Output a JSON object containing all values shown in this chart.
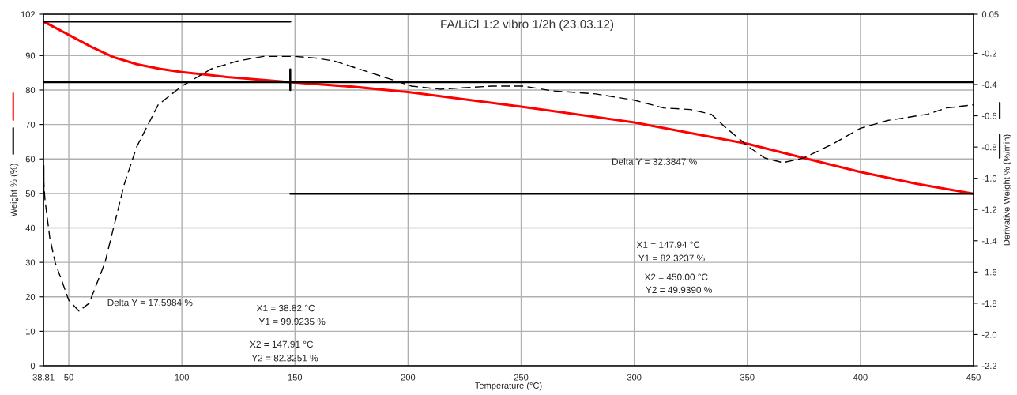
{
  "chart_data": {
    "type": "line",
    "title": "FA/LiCl 1:2 vibro 1/2h (23.03.12)",
    "xlabel": "Temperature (°C)",
    "ylabel": "Weight % (%)",
    "y2label": "Derivative Weight % (%/min)",
    "xlim": [
      38.81,
      450
    ],
    "xticks": [
      38.81,
      50,
      100,
      150,
      200,
      250,
      300,
      350,
      400,
      450
    ],
    "ylim": [
      0,
      102
    ],
    "yticks": [
      0,
      10,
      20,
      30,
      40,
      50,
      60,
      70,
      80,
      90,
      102
    ],
    "y2lim": [
      -2.2,
      0.05
    ],
    "y2ticks": [
      0.05,
      -0.2,
      -0.4,
      -0.6,
      -0.8,
      {
        "value": -1.0,
        "label": "-1.0"
      },
      -1.2,
      -1.4,
      -1.6,
      -1.8,
      {
        "value": -2.0,
        "label": "-2.0"
      },
      -2.2
    ],
    "grid": true,
    "marker": "none",
    "series": [
      {
        "color": "#ff0000",
        "line_style": "solid",
        "x": [
          38.81,
          50,
          60,
          70,
          80,
          90,
          100,
          120,
          147.91,
          175,
          200,
          250,
          300,
          350,
          375,
          400,
          425,
          450
        ],
        "values": [
          99.9,
          96,
          92.5,
          89.5,
          87.5,
          86.2,
          85.2,
          83.8,
          82.3,
          81,
          79.4,
          75.2,
          70.6,
          64.4,
          60.3,
          56.2,
          52.8,
          49.9
        ]
      },
      {
        "color": "#000000",
        "line_style": "dashed",
        "axis": "y2",
        "x": [
          38.81,
          39.5,
          41.6,
          44,
          50,
          54.5,
          59,
          66,
          74.5,
          80,
          89.5,
          100,
          113,
          124.5,
          136,
          150,
          159,
          167.6,
          191,
          201.5,
          214,
          237,
          251,
          263.5,
          283,
          300,
          313,
          324.8,
          334,
          340,
          350.7,
          357.7,
          365.7,
          375,
          387.8,
          400,
          412,
          429.7,
          438,
          450
        ],
        "values": [
          -1.0,
          -1.14,
          -1.38,
          -1.54,
          -1.78,
          -1.85,
          -1.8,
          -1.54,
          -1.04,
          -0.8,
          -0.53,
          -0.41,
          -0.3,
          -0.25,
          -0.22,
          -0.22,
          -0.23,
          -0.25,
          -0.36,
          -0.41,
          -0.43,
          -0.41,
          -0.41,
          -0.44,
          -0.46,
          -0.5,
          -0.55,
          -0.56,
          -0.59,
          -0.67,
          -0.8,
          -0.87,
          -0.9,
          -0.87,
          -0.78,
          -0.68,
          -0.63,
          -0.59,
          -0.55,
          -0.53
        ]
      },
      {
        "color": "#000000",
        "line_style": "solid",
        "x": [
          38.81,
          147.91
        ],
        "values": [
          99.9,
          99.9
        ]
      },
      {
        "color": "#000000",
        "line_style": "solid",
        "x": [
          38.81,
          450
        ],
        "values": [
          82.3,
          82.3
        ]
      },
      {
        "color": "#000000",
        "line_style": "solid",
        "x": [
          147.94,
          450
        ],
        "values": [
          49.9,
          49.9
        ]
      },
      {
        "color": "#000000",
        "line_style": "solid",
        "x": [
          38.81,
          38.81
        ],
        "values": [
          50,
          58
        ]
      },
      {
        "color": "#000000",
        "line_style": "solid",
        "x": [
          147.91,
          147.91
        ],
        "values": [
          80,
          86
        ]
      }
    ],
    "annotations": [
      "Delta Y = 17.5984 %",
      "X1 = 38.82 °C",
      "Y1 = 99.9235 %",
      "X2 = 147.91 °C",
      "Y2 = 82.3251 %",
      "Delta Y = 32.3847 %",
      "X1 = 147.94 °C",
      "Y1 = 82.3237 %",
      "X2 = 450.00 °C",
      "Y2 = 49.9390 %"
    ]
  }
}
